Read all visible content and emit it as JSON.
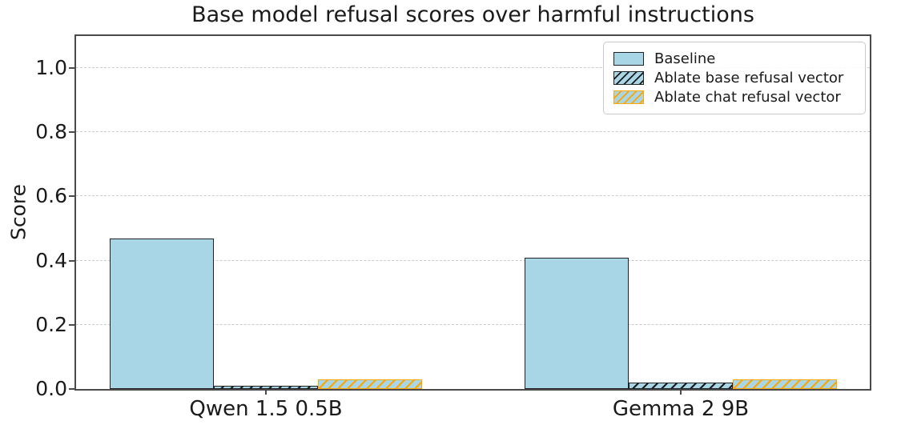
{
  "chart_data": {
    "type": "bar",
    "title": "Base model refusal scores over harmful instructions",
    "xlabel": "",
    "ylabel": "Score",
    "categories": [
      "Qwen 1.5 0.5B",
      "Gemma 2 9B"
    ],
    "series": [
      {
        "name": "Baseline",
        "values": [
          0.47,
          0.41
        ],
        "fill": "#a8d6e6",
        "edge": "#222222",
        "hatch": "none"
      },
      {
        "name": "Ablate base refusal vector",
        "values": [
          0.01,
          0.02
        ],
        "fill": "#a8d6e6",
        "edge": "#222222",
        "hatch": "#1a1a1a"
      },
      {
        "name": "Ablate chat refusal vector",
        "values": [
          0.03,
          0.03
        ],
        "fill": "#a8d6e6",
        "edge": "#ffa500",
        "hatch": "#ffa500"
      }
    ],
    "ylim": [
      0,
      1.1
    ],
    "yticks": [
      {
        "value": 0.0,
        "label": "0.0"
      },
      {
        "value": 0.2,
        "label": "0.2"
      },
      {
        "value": 0.4,
        "label": "0.4"
      },
      {
        "value": 0.6,
        "label": "0.6"
      },
      {
        "value": 0.8,
        "label": "0.8"
      },
      {
        "value": 1.0,
        "label": "1.0"
      }
    ],
    "grid": "horizontal dashed",
    "legend_position": "upper right"
  },
  "colors": {
    "bar_fill": "#a8d6e6",
    "hatch_black": "#1a1a1a",
    "hatch_orange": "#ffa500",
    "grid": "#cccccc",
    "spine": "#4a4a4a",
    "text": "#1a1a1a"
  }
}
